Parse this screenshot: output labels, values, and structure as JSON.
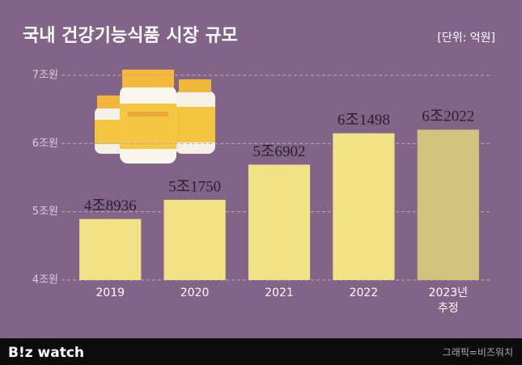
{
  "chart_data": {
    "type": "bar",
    "title": "국내 건강기능식품 시장 규모",
    "unit_note": "[단위: 억원]",
    "categories": [
      "2019",
      "2020",
      "2021",
      "2022",
      "2023년\n추정"
    ],
    "values": [
      4.8936,
      5.175,
      5.6902,
      6.1498,
      6.2022
    ],
    "value_labels": [
      "4조8936",
      "5조1750",
      "5조6902",
      "6조1498",
      "6조2022"
    ],
    "colors": [
      "#f2e286",
      "#f2e286",
      "#f2e286",
      "#f2e286",
      "#d3c27e"
    ],
    "ylim": [
      4,
      7
    ],
    "yticks": [
      {
        "value": 4,
        "label": "4조원"
      },
      {
        "value": 5,
        "label": "5조원"
      },
      {
        "value": 6,
        "label": "6조원"
      },
      {
        "value": 7,
        "label": "7조원"
      }
    ],
    "grid": true
  },
  "footer": {
    "logo": "B!z watch",
    "credit": "그래픽=비즈워치"
  }
}
